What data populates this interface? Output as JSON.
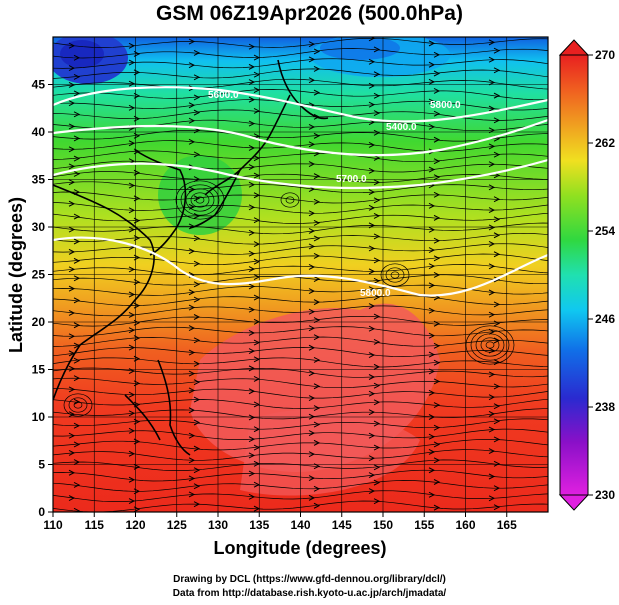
{
  "title": "GSM 06Z19Apr2026 (500.0hPa)",
  "x_axis": {
    "label": "Longitude (degrees)",
    "range": [
      110,
      170
    ],
    "ticks": [
      "110",
      "115",
      "120",
      "125",
      "130",
      "135",
      "140",
      "145",
      "150",
      "155",
      "160",
      "165"
    ],
    "tick_values": [
      110,
      115,
      120,
      125,
      130,
      135,
      140,
      145,
      150,
      155,
      160,
      165
    ]
  },
  "y_axis": {
    "label": "Latitude (degrees)",
    "range": [
      0,
      50
    ],
    "ticks": [
      "0",
      "5",
      "10",
      "15",
      "20",
      "25",
      "30",
      "35",
      "40",
      "45"
    ],
    "tick_values": [
      0,
      5,
      10,
      15,
      20,
      25,
      30,
      35,
      40,
      45
    ]
  },
  "colorbar": {
    "range": [
      230,
      270
    ],
    "tick_labels": [
      "230",
      "238",
      "246",
      "254",
      "262",
      "270"
    ],
    "tick_values": [
      230,
      238,
      246,
      254,
      262,
      270
    ],
    "colors": [
      "#e020e0",
      "#b000c0",
      "#3030d0",
      "#1060e0",
      "#10a0f0",
      "#10d8e0",
      "#20e070",
      "#40d020",
      "#a0e020",
      "#f0e020",
      "#f0a020",
      "#f06020",
      "#f03020",
      "#e82020"
    ]
  },
  "contours": [
    {
      "label": "5600.0",
      "value": 5600
    },
    {
      "label": "5400.0",
      "value": 5400
    },
    {
      "label": "5700.0",
      "value": 5700
    },
    {
      "label": "5800.0",
      "value": 5800
    },
    {
      "label": "5800.0",
      "value": 5800
    }
  ],
  "footer": {
    "credit": "Drawing by DCL (https://www.gfd-dennou.org/library/dcl/)",
    "source": "Data from http://database.rish.kyoto-u.ac.jp/arch/jmadata/"
  }
}
